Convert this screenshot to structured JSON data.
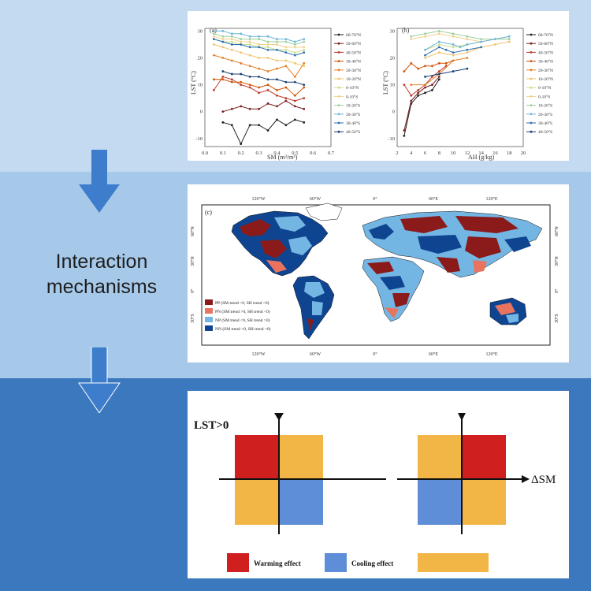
{
  "labels": {
    "mechanism": "Interaction mechanisms"
  },
  "colors": {
    "band_top": "#c3daf1",
    "band_mid": "#a6c9ea",
    "band_bottom": "#3b78bd",
    "arrow": "#3e7dcc",
    "warming": "#cf1f1f",
    "cooling": "#5d8ed7",
    "orange": "#f2b646",
    "map_pp": "#8b1a1a",
    "map_pn": "#e8745f",
    "map_np": "#74b6e3",
    "map_nn": "#0f4590"
  },
  "plot_a": {
    "panel_label": "(a)",
    "ylabel": "LST (°C)",
    "xlabel": "SM (m³/m³)",
    "xticks": [
      "0.0",
      "0.1",
      "0.2",
      "0.3",
      "0.4",
      "0.5",
      "0.6",
      "0.7"
    ],
    "yticks": [
      "-10",
      "0",
      "10",
      "20",
      "30"
    ],
    "legend": [
      "60-70°N",
      "50-60°N",
      "40-50°N",
      "30-40°N",
      "20-30°N",
      "10-20°N",
      "0-10°N",
      "0-10°S",
      "10-20°S",
      "20-30°S",
      "30-40°S",
      "40-50°S"
    ]
  },
  "plot_b": {
    "panel_label": "(b)",
    "ylabel": "LST (°C)",
    "xlabel": "AH (g/kg)",
    "xticks": [
      "2",
      "4",
      "6",
      "8",
      "10",
      "12",
      "14",
      "16",
      "18",
      "20"
    ],
    "yticks": [
      "-10",
      "0",
      "10",
      "20",
      "30"
    ],
    "legend": [
      "60-70°N",
      "50-60°N",
      "40-50°N",
      "30-40°N",
      "20-30°N",
      "10-20°N",
      "0-10°N",
      "0-10°S",
      "10-20°S",
      "20-30°S",
      "30-40°S",
      "40-50°S"
    ]
  },
  "map": {
    "panel_label": "(c)",
    "lon_ticks": [
      "120°W",
      "60°W",
      "0°",
      "60°E",
      "120°E"
    ],
    "lat_ticks": [
      "60°N",
      "30°N",
      "0°",
      "30°S",
      "60°S"
    ],
    "legend": [
      "PP (SM trend >0, SH trend >0)",
      "PN (SM trend >0, SH trend <0)",
      "NP (SM trend <0, SH trend >0)",
      "NN (SM trend <0, SH trend <0)"
    ]
  },
  "quadrant": {
    "lst_label": "LST>0",
    "sm_label": "ΔSM",
    "legend_warming": "Warming effect",
    "legend_cooling": "Cooling effect"
  },
  "chart_data": [
    {
      "type": "line",
      "title": "(a)",
      "xlabel": "SM (m³/m³)",
      "ylabel": "LST (°C)",
      "xlim": [
        0.0,
        0.7
      ],
      "ylim": [
        -13,
        31
      ],
      "series": [
        {
          "name": "60-70°N",
          "x": [
            0.1,
            0.15,
            0.2,
            0.25,
            0.3,
            0.35,
            0.4,
            0.45,
            0.5,
            0.55
          ],
          "values": [
            -4,
            -5,
            -12,
            -5,
            -5,
            -7,
            -3,
            -5,
            -3,
            -4
          ]
        },
        {
          "name": "50-60°N",
          "x": [
            0.1,
            0.15,
            0.2,
            0.25,
            0.3,
            0.35,
            0.4,
            0.45,
            0.5,
            0.55
          ],
          "values": [
            0,
            1,
            2,
            1,
            1,
            3,
            2,
            4,
            2,
            1
          ]
        },
        {
          "name": "40-50°N",
          "x": [
            0.05,
            0.1,
            0.15,
            0.2,
            0.25,
            0.3,
            0.35,
            0.4,
            0.45,
            0.5,
            0.55
          ],
          "values": [
            8,
            13,
            12,
            10,
            9,
            7,
            8,
            6,
            5,
            4,
            5
          ]
        },
        {
          "name": "30-40°N",
          "x": [
            0.05,
            0.1,
            0.15,
            0.2,
            0.25,
            0.3,
            0.35,
            0.4,
            0.45,
            0.5,
            0.55
          ],
          "values": [
            12,
            12,
            11,
            11,
            10,
            9,
            10,
            8,
            9,
            6,
            9
          ]
        },
        {
          "name": "20-30°N",
          "x": [
            0.05,
            0.1,
            0.15,
            0.2,
            0.25,
            0.3,
            0.35,
            0.4,
            0.45,
            0.5,
            0.55
          ],
          "values": [
            21,
            20,
            19,
            18,
            17,
            16,
            15,
            16,
            17,
            13,
            18
          ]
        },
        {
          "name": "10-20°N",
          "x": [
            0.05,
            0.1,
            0.15,
            0.2,
            0.25,
            0.3,
            0.35,
            0.4,
            0.45,
            0.5,
            0.55
          ],
          "values": [
            25,
            24,
            23,
            22,
            21,
            20,
            20,
            19,
            19,
            18,
            17
          ]
        },
        {
          "name": "0-10°N",
          "x": [
            0.05,
            0.1,
            0.15,
            0.2,
            0.25,
            0.3,
            0.35,
            0.4,
            0.45,
            0.5,
            0.55
          ],
          "values": [
            27,
            26,
            26,
            25,
            25,
            24,
            24,
            23,
            23,
            22,
            23
          ]
        },
        {
          "name": "0-10°S",
          "x": [
            0.05,
            0.1,
            0.15,
            0.2,
            0.25,
            0.3,
            0.35,
            0.4,
            0.45,
            0.5,
            0.55
          ],
          "values": [
            28,
            27,
            27,
            26,
            26,
            25,
            25,
            25,
            24,
            24,
            24
          ]
        },
        {
          "name": "10-20°S",
          "x": [
            0.05,
            0.1,
            0.15,
            0.2,
            0.25,
            0.3,
            0.35,
            0.4,
            0.45,
            0.5,
            0.55
          ],
          "values": [
            29,
            28,
            28,
            27,
            27,
            27,
            26,
            26,
            26,
            25,
            26
          ]
        },
        {
          "name": "20-30°S",
          "x": [
            0.05,
            0.1,
            0.15,
            0.2,
            0.25,
            0.3,
            0.35,
            0.4,
            0.45,
            0.5,
            0.55
          ],
          "values": [
            30,
            30,
            29,
            29,
            28,
            28,
            28,
            27,
            27,
            26,
            27
          ]
        },
        {
          "name": "30-40°S",
          "x": [
            0.05,
            0.1,
            0.15,
            0.2,
            0.25,
            0.3,
            0.35,
            0.4,
            0.45,
            0.5,
            0.55
          ],
          "values": [
            27,
            26,
            25,
            25,
            24,
            24,
            23,
            23,
            22,
            21,
            22
          ]
        },
        {
          "name": "40-50°S",
          "x": [
            0.1,
            0.15,
            0.2,
            0.25,
            0.3,
            0.35,
            0.4,
            0.45,
            0.5,
            0.55
          ],
          "values": [
            15,
            14,
            14,
            13,
            13,
            12,
            12,
            11,
            11,
            10
          ]
        }
      ]
    },
    {
      "type": "line",
      "title": "(b)",
      "xlabel": "AH (g/kg)",
      "ylabel": "LST (°C)",
      "xlim": [
        2,
        20
      ],
      "ylim": [
        -13,
        31
      ],
      "series": [
        {
          "name": "60-70°N",
          "x": [
            3,
            4,
            5,
            6,
            7,
            8
          ],
          "values": [
            -9,
            3,
            6,
            7,
            8,
            12
          ]
        },
        {
          "name": "50-60°N",
          "x": [
            3,
            4,
            5,
            6,
            7,
            8
          ],
          "values": [
            -7,
            4,
            7,
            9,
            10,
            13
          ]
        },
        {
          "name": "40-50°N",
          "x": [
            3,
            4,
            5,
            6,
            7,
            8,
            9
          ],
          "values": [
            10,
            6,
            8,
            10,
            13,
            15,
            17
          ]
        },
        {
          "name": "30-40°N",
          "x": [
            3,
            4,
            5,
            6,
            7,
            8,
            9,
            10
          ],
          "values": [
            15,
            18,
            16,
            17,
            17,
            18,
            18,
            19
          ]
        },
        {
          "name": "20-30°N",
          "x": [
            4,
            6,
            8,
            10,
            12
          ],
          "values": [
            10,
            10,
            14,
            19,
            20
          ]
        },
        {
          "name": "10-20°N",
          "x": [
            6,
            8,
            10,
            12,
            14,
            16,
            18
          ],
          "values": [
            20,
            22,
            21,
            22,
            24,
            25,
            26
          ]
        },
        {
          "name": "0-10°N",
          "x": [
            6,
            8,
            10,
            12,
            14,
            16,
            18
          ],
          "values": [
            23,
            25,
            24,
            25,
            26,
            27,
            27
          ]
        },
        {
          "name": "0-10°S",
          "x": [
            4,
            6,
            8,
            10,
            12,
            14,
            16,
            18
          ],
          "values": [
            27,
            28,
            29,
            28,
            27,
            26,
            27,
            28
          ]
        },
        {
          "name": "10-20°S",
          "x": [
            4,
            6,
            8,
            10,
            12,
            14,
            16,
            18
          ],
          "values": [
            28,
            29,
            30,
            29,
            28,
            27,
            27,
            27
          ]
        },
        {
          "name": "20-30°S",
          "x": [
            6,
            8,
            10,
            11,
            12,
            14,
            16,
            18
          ],
          "values": [
            23,
            26,
            25,
            24,
            25,
            26,
            27,
            28
          ]
        },
        {
          "name": "30-40°S",
          "x": [
            6,
            8,
            9,
            10,
            12,
            14
          ],
          "values": [
            21,
            24,
            23,
            22,
            23,
            24
          ]
        },
        {
          "name": "40-50°S",
          "x": [
            6,
            8,
            10,
            12
          ],
          "values": [
            13,
            14,
            15,
            16
          ]
        }
      ]
    }
  ]
}
